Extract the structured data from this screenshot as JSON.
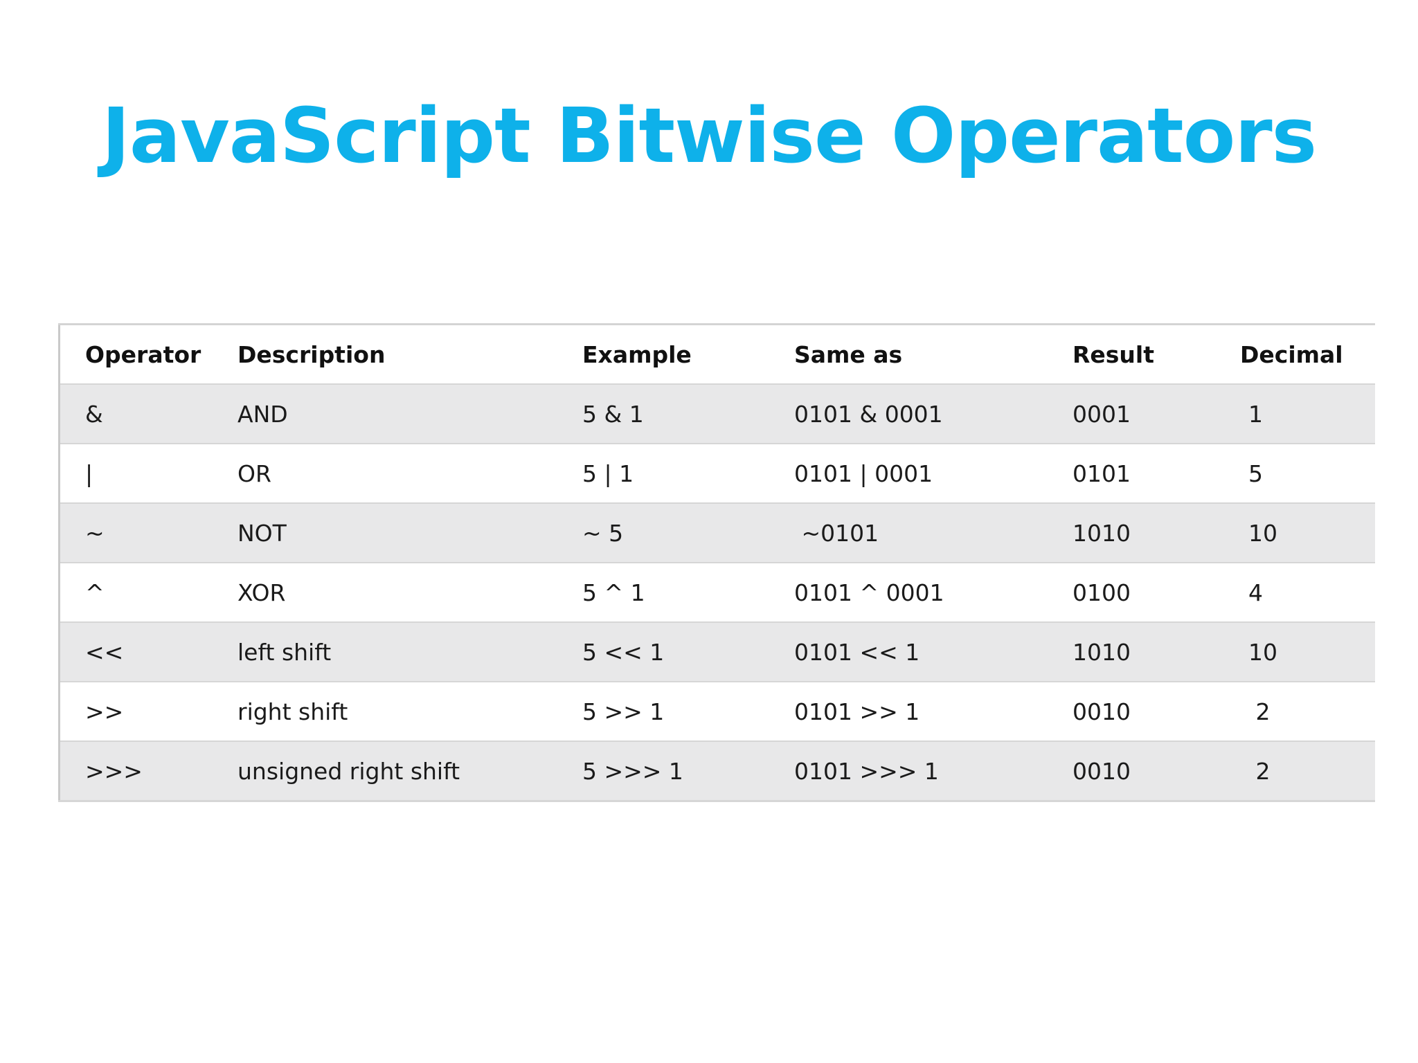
{
  "title": "JavaScript Bitwise Operators",
  "table": {
    "headers": [
      "Operator",
      "Description",
      "Example",
      "Same as",
      "Result",
      "Decimal"
    ],
    "rows": [
      [
        "&",
        "AND",
        "5 & 1",
        "0101 & 0001",
        "0001",
        "1"
      ],
      [
        "|",
        "OR",
        "5 | 1",
        "0101 | 0001",
        "0101",
        "5"
      ],
      [
        "~",
        "NOT",
        "~ 5",
        " ~0101",
        "1010",
        "10"
      ],
      [
        "^",
        "XOR",
        "5 ^ 1",
        "0101 ^ 0001",
        "0100",
        "4"
      ],
      [
        "<<",
        "left shift",
        "5 << 1",
        "0101 << 1",
        "1010",
        "10"
      ],
      [
        ">>",
        "right shift",
        "5 >> 1",
        "0101 >> 1",
        "0010",
        " 2"
      ],
      [
        ">>>",
        "unsigned right shift",
        "5 >>> 1",
        "0101 >>> 1",
        "0010",
        " 2"
      ]
    ]
  }
}
